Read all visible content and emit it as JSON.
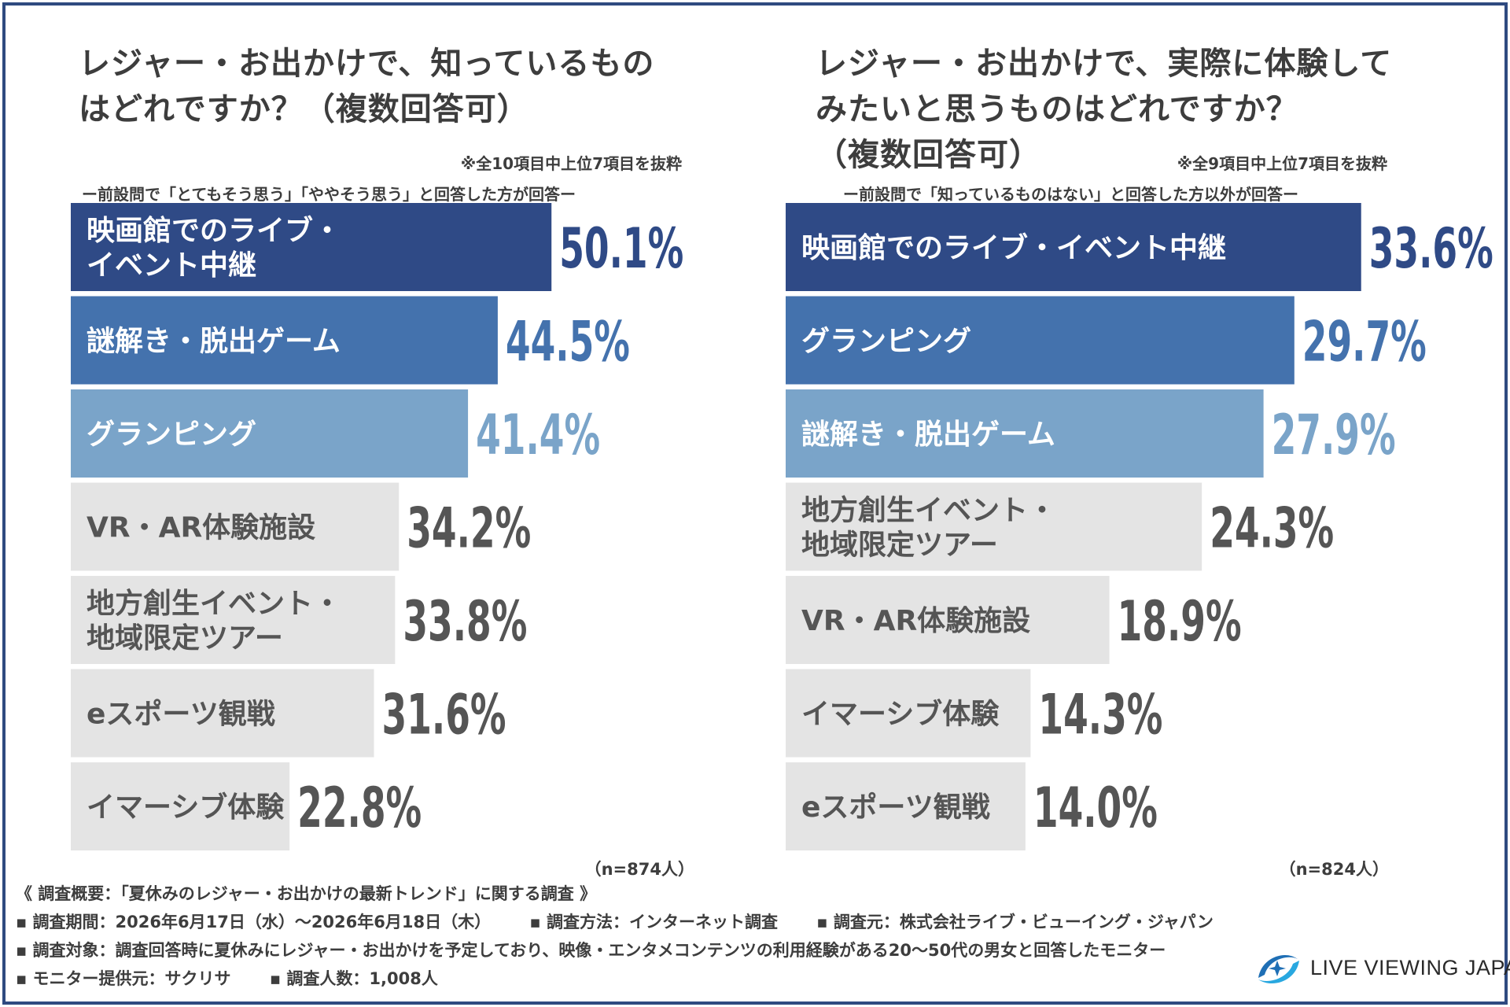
{
  "left": {
    "title_line1": "レジャー・お出かけで、知っているもの",
    "title_line2": "はどれですか？（複数回答可）",
    "note_extract": "※全10項目中上位7項目を抜粋",
    "note_condition": "ー前設問で「とてもそう思う」「ややそう思う」と回答した方が回答ー",
    "n_label": "（n=874人）"
  },
  "right": {
    "title_line1": "レジャー・お出かけで、実際に体験して",
    "title_line2": "みたいと思うものはどれですか？",
    "title_line3": "（複数回答可）",
    "note_extract": "※全9項目中上位7項目を抜粋",
    "note_condition": "ー前設問で「知っているものはない」と回答した方以外が回答ー",
    "n_label": "（n=824人）"
  },
  "chart_data": [
    {
      "type": "bar",
      "orientation": "horizontal",
      "categories": [
        "映画館でのライブ・\nイベント中継",
        "謎解き・脱出ゲーム",
        "グランピング",
        "VR・AR体験施設",
        "地方創生イベント・\n地域限定ツアー",
        "eスポーツ観戦",
        "イマーシブ体験"
      ],
      "values": [
        50.1,
        44.5,
        41.4,
        34.2,
        33.8,
        31.6,
        22.8
      ],
      "value_labels": [
        "50.1%",
        "44.5%",
        "41.4%",
        "34.2%",
        "33.8%",
        "31.6%",
        "22.8%"
      ],
      "unit": "%",
      "xlim": [
        0,
        70
      ],
      "grid": false,
      "legend": "none",
      "colors": [
        "#2f4a86",
        "#4472ad",
        "#7aa4c9",
        "#e4e4e4",
        "#e4e4e4",
        "#e4e4e4",
        "#e4e4e4"
      ],
      "label_colors": [
        "#ffffff",
        "#ffffff",
        "#ffffff",
        "#555555",
        "#555555",
        "#555555",
        "#555555"
      ],
      "value_colors": [
        "#2f4a86",
        "#4472ad",
        "#7aa4c9",
        "#555555",
        "#555555",
        "#555555",
        "#555555"
      ]
    },
    {
      "type": "bar",
      "orientation": "horizontal",
      "categories": [
        "映画館でのライブ・イベント中継",
        "グランピング",
        "謎解き・脱出ゲーム",
        "地方創生イベント・\n地域限定ツアー",
        "VR・AR体験施設",
        "イマーシブ体験",
        "eスポーツ観戦"
      ],
      "values": [
        33.6,
        29.7,
        27.9,
        24.3,
        18.9,
        14.3,
        14.0
      ],
      "value_labels": [
        "33.6%",
        "29.7%",
        "27.9%",
        "24.3%",
        "18.9%",
        "14.3%",
        "14.0%"
      ],
      "unit": "%",
      "xlim": [
        0,
        45
      ],
      "grid": false,
      "legend": "none",
      "colors": [
        "#2f4a86",
        "#4472ad",
        "#7aa4c9",
        "#e4e4e4",
        "#e4e4e4",
        "#e4e4e4",
        "#e4e4e4"
      ],
      "label_colors": [
        "#ffffff",
        "#ffffff",
        "#ffffff",
        "#555555",
        "#555555",
        "#555555",
        "#555555"
      ],
      "value_colors": [
        "#2f4a86",
        "#4472ad",
        "#7aa4c9",
        "#555555",
        "#555555",
        "#555555",
        "#555555"
      ]
    }
  ],
  "footer": {
    "line1": "《 調査概要：「夏休みのレジャー・お出かけの最新トレンド」に関する調査 》",
    "period": "▪ 調査期間：2026年6月17日（水）～2026年6月18日（木）",
    "method": "▪ 調査方法：インターネット調査",
    "source": "▪ 調査元：株式会社ライブ・ビューイング・ジャパン",
    "target": "▪ 調査対象：調査回答時に夏休みにレジャー・お出かけを予定しており、映像・エンタメコンテンツの利用経験がある20～50代の男女と回答したモニター",
    "provider": "▪ モニター提供元：サクリサ",
    "count": "▪ 調査人数：1,008人"
  },
  "logo": {
    "text": "LIVE VIEWING JAPAN",
    "colors": [
      "#1f6fb5",
      "#29a8e0"
    ]
  }
}
